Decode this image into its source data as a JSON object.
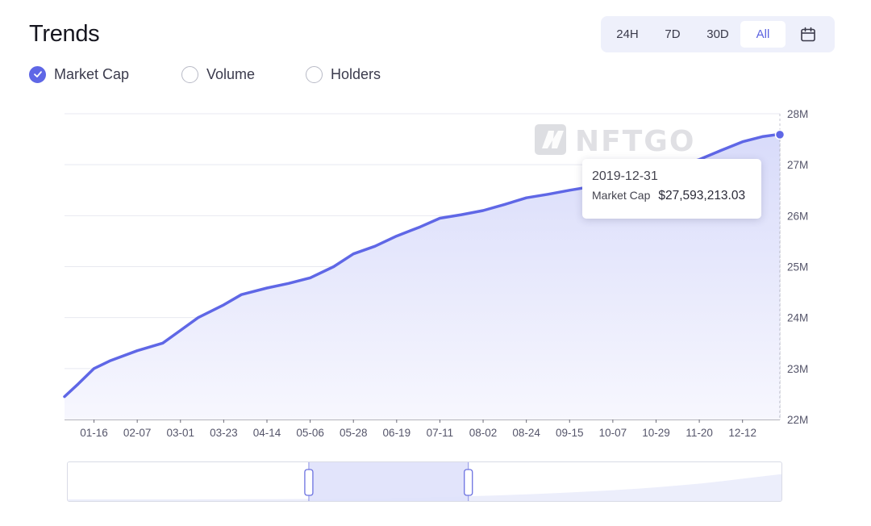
{
  "title": "Trends",
  "range_buttons": [
    {
      "label": "24H",
      "active": false
    },
    {
      "label": "7D",
      "active": false
    },
    {
      "label": "30D",
      "active": false
    },
    {
      "label": "All",
      "active": true
    }
  ],
  "calendar_icon": "calendar-icon",
  "metrics": [
    {
      "label": "Market Cap",
      "checked": true
    },
    {
      "label": "Volume",
      "checked": false
    },
    {
      "label": "Holders",
      "checked": false
    }
  ],
  "watermark": "NFTGO",
  "tooltip": {
    "date": "2019-12-31",
    "label": "Market Cap",
    "value": "$27,593,213.03"
  },
  "colors": {
    "accent": "#5f67e6",
    "area_top": "#d8dbfa",
    "area_bottom": "#f7f7fe",
    "grid": "#e8e9f0",
    "axis_text": "#55556a",
    "zoom_window": "#dfe1fb"
  },
  "chart_data": {
    "type": "area",
    "title": "",
    "xlabel": "",
    "ylabel": "",
    "series": [
      {
        "name": "Market Cap",
        "x": [
          "2019-01-01",
          "2019-01-08",
          "2019-01-16",
          "2019-01-24",
          "2019-02-07",
          "2019-02-20",
          "2019-03-01",
          "2019-03-10",
          "2019-03-23",
          "2019-04-01",
          "2019-04-14",
          "2019-04-25",
          "2019-05-06",
          "2019-05-18",
          "2019-05-28",
          "2019-06-08",
          "2019-06-19",
          "2019-07-01",
          "2019-07-11",
          "2019-07-22",
          "2019-08-02",
          "2019-08-13",
          "2019-08-24",
          "2019-09-04",
          "2019-09-15",
          "2019-09-26",
          "2019-10-07",
          "2019-10-18",
          "2019-10-29",
          "2019-11-09",
          "2019-11-20",
          "2019-12-01",
          "2019-12-12",
          "2019-12-22",
          "2019-12-31"
        ],
        "values": [
          22.45,
          22.7,
          23.0,
          23.15,
          23.35,
          23.5,
          23.75,
          24.0,
          24.25,
          24.45,
          24.58,
          24.67,
          24.78,
          25.0,
          25.25,
          25.4,
          25.6,
          25.78,
          25.95,
          26.02,
          26.1,
          26.22,
          26.35,
          26.42,
          26.5,
          26.57,
          26.65,
          26.75,
          26.88,
          26.98,
          27.1,
          27.28,
          27.45,
          27.55,
          27.6
        ]
      }
    ],
    "xticks": [
      "01-16",
      "02-07",
      "03-01",
      "03-23",
      "04-14",
      "05-06",
      "05-28",
      "06-19",
      "07-11",
      "08-02",
      "08-24",
      "09-15",
      "10-07",
      "10-29",
      "11-20",
      "12-12"
    ],
    "yticks": [
      "22M",
      "23M",
      "24M",
      "25M",
      "26M",
      "27M",
      "28M"
    ],
    "ylim": [
      22,
      28
    ],
    "y_unit": "millions USD",
    "grid": true,
    "highlight_point": {
      "x": "2019-12-31",
      "y": 27.59
    },
    "zoom_window": [
      0.337,
      0.56
    ]
  }
}
